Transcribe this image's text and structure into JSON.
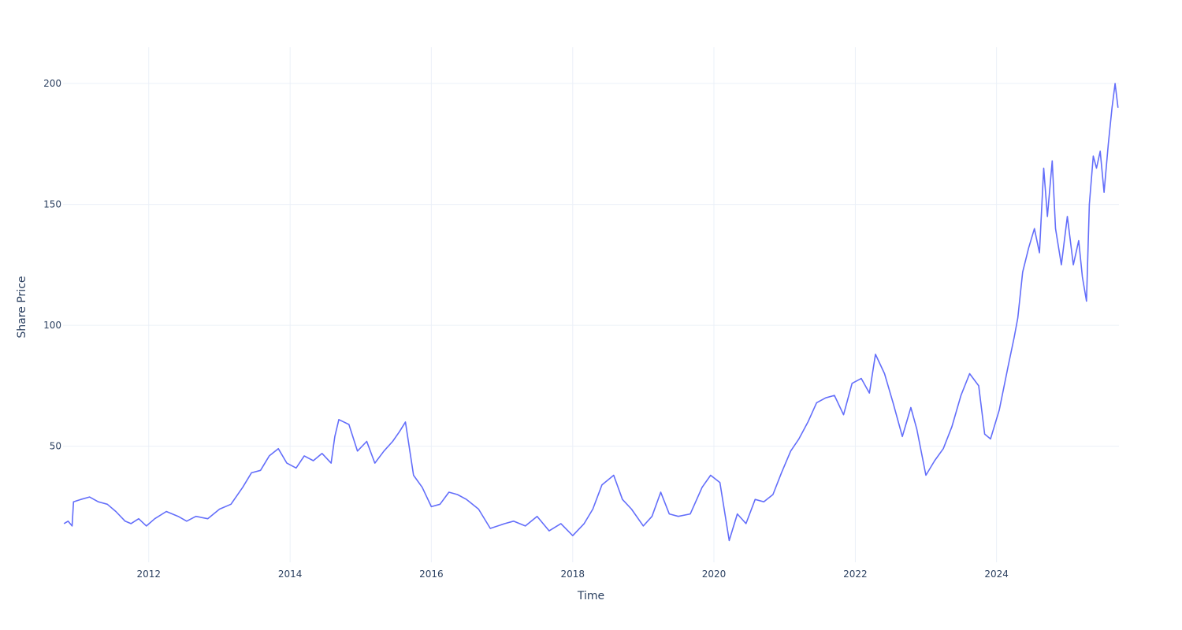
{
  "chart_data": {
    "type": "line",
    "title": "",
    "xlabel": "Time",
    "ylabel": "Share Price",
    "x_ticks": [
      "2012",
      "2014",
      "2016",
      "2018",
      "2020",
      "2022",
      "2024"
    ],
    "y_ticks": [
      50,
      100,
      150,
      200
    ],
    "xlim": [
      "2010-10-15",
      "2025-09-25"
    ],
    "ylim": [
      2,
      215
    ],
    "grid": true,
    "line_color": "#636efa",
    "series": [
      {
        "x": [
          "2010-10-20",
          "2010-11-10",
          "2010-12-01",
          "2010-12-08",
          "2011-01-15",
          "2011-03-01",
          "2011-04-15",
          "2011-06-01",
          "2011-07-15",
          "2011-09-01",
          "2011-10-01",
          "2011-11-10",
          "2011-12-20",
          "2012-02-01",
          "2012-04-01",
          "2012-06-01",
          "2012-07-15",
          "2012-09-01",
          "2012-11-01",
          "2013-01-01",
          "2013-03-01",
          "2013-05-01",
          "2013-06-15",
          "2013-08-01",
          "2013-09-15",
          "2013-11-01",
          "2013-12-15",
          "2014-02-01",
          "2014-03-15",
          "2014-05-01",
          "2014-06-15",
          "2014-08-01",
          "2014-08-20",
          "2014-09-10",
          "2014-11-01",
          "2014-12-15",
          "2015-02-01",
          "2015-03-15",
          "2015-05-01",
          "2015-06-15",
          "2015-07-20",
          "2015-08-20",
          "2015-10-01",
          "2015-11-15",
          "2016-01-01",
          "2016-02-15",
          "2016-04-01",
          "2016-05-15",
          "2016-07-01",
          "2016-09-01",
          "2016-11-01",
          "2017-01-15",
          "2017-03-01",
          "2017-05-01",
          "2017-07-01",
          "2017-09-01",
          "2017-11-01",
          "2018-01-01",
          "2018-03-01",
          "2018-04-15",
          "2018-06-01",
          "2018-08-01",
          "2018-09-15",
          "2018-11-01",
          "2019-01-01",
          "2019-02-15",
          "2019-04-01",
          "2019-05-15",
          "2019-07-01",
          "2019-09-01",
          "2019-11-01",
          "2019-12-15",
          "2020-02-01",
          "2020-03-20",
          "2020-05-01",
          "2020-06-15",
          "2020-08-01",
          "2020-09-15",
          "2020-11-01",
          "2020-12-15",
          "2021-02-01",
          "2021-03-15",
          "2021-05-01",
          "2021-06-15",
          "2021-08-01",
          "2021-09-15",
          "2021-11-01",
          "2021-12-15",
          "2022-02-01",
          "2022-03-15",
          "2022-04-15",
          "2022-06-01",
          "2022-07-15",
          "2022-09-01",
          "2022-10-15",
          "2022-11-15",
          "2023-01-01",
          "2023-02-15",
          "2023-04-01",
          "2023-05-15",
          "2023-07-01",
          "2023-08-15",
          "2023-10-01",
          "2023-11-01",
          "2023-12-01",
          "2024-01-15",
          "2024-03-01",
          "2024-04-01",
          "2024-04-20",
          "2024-05-15",
          "2024-06-15",
          "2024-07-15",
          "2024-08-10",
          "2024-09-01",
          "2024-09-20",
          "2024-10-15",
          "2024-11-01",
          "2024-12-01",
          "2025-01-01",
          "2025-02-01",
          "2025-03-01",
          "2025-03-20",
          "2025-04-10",
          "2025-04-25",
          "2025-05-15",
          "2025-06-01",
          "2025-06-20",
          "2025-07-10",
          "2025-08-01",
          "2025-08-20",
          "2025-09-05",
          "2025-09-20"
        ],
        "y": [
          18,
          19,
          17,
          27,
          28,
          29,
          27,
          26,
          23,
          19,
          18,
          20,
          17,
          20,
          23,
          21,
          19,
          21,
          20,
          24,
          26,
          33,
          39,
          40,
          46,
          49,
          43,
          41,
          46,
          44,
          47,
          43,
          54,
          61,
          59,
          48,
          52,
          43,
          48,
          52,
          56,
          60,
          38,
          33,
          25,
          26,
          31,
          30,
          28,
          24,
          16,
          18,
          19,
          17,
          21,
          15,
          18,
          13,
          18,
          24,
          34,
          38,
          28,
          24,
          17,
          21,
          31,
          22,
          21,
          22,
          33,
          38,
          35,
          11,
          22,
          18,
          28,
          27,
          30,
          39,
          48,
          53,
          60,
          68,
          70,
          71,
          63,
          76,
          78,
          72,
          88,
          80,
          68,
          54,
          66,
          57,
          38,
          44,
          49,
          58,
          71,
          80,
          75,
          55,
          53,
          65,
          83,
          95,
          103,
          122,
          132,
          140,
          130,
          165,
          145,
          168,
          140,
          125,
          145,
          125,
          135,
          120,
          110,
          150,
          170,
          165,
          172,
          155,
          175,
          190,
          200,
          190
        ]
      }
    ]
  }
}
